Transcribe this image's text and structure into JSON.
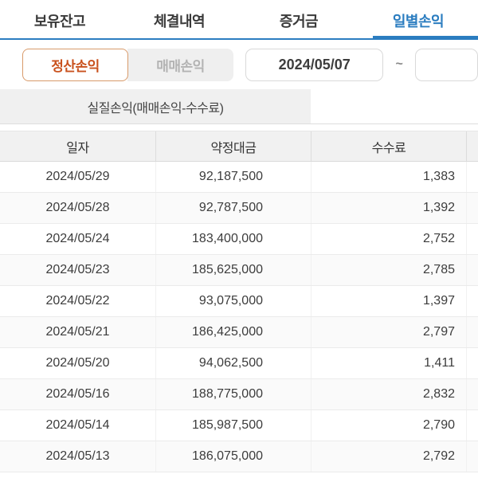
{
  "tabs": {
    "items": [
      {
        "label": "보유잔고",
        "active": false
      },
      {
        "label": "체결내역",
        "active": false
      },
      {
        "label": "증거금",
        "active": false
      },
      {
        "label": "일별손익",
        "active": true
      }
    ]
  },
  "filters": {
    "toggle": [
      {
        "label": "정산손익",
        "selected": true
      },
      {
        "label": "매매손익",
        "selected": false
      }
    ],
    "date_from": "2024/05/07",
    "range_separator": "~",
    "date_to": ""
  },
  "summary": {
    "label": "실질손익(매매손익-수수료)",
    "value": ""
  },
  "table": {
    "headers": [
      "일자",
      "약정대금",
      "수수료"
    ],
    "rows": [
      {
        "date": "2024/05/29",
        "contract_amount": "92,187,500",
        "fee": "1,383"
      },
      {
        "date": "2024/05/28",
        "contract_amount": "92,787,500",
        "fee": "1,392"
      },
      {
        "date": "2024/05/24",
        "contract_amount": "183,400,000",
        "fee": "2,752"
      },
      {
        "date": "2024/05/23",
        "contract_amount": "185,625,000",
        "fee": "2,785"
      },
      {
        "date": "2024/05/22",
        "contract_amount": "93,075,000",
        "fee": "1,397"
      },
      {
        "date": "2024/05/21",
        "contract_amount": "186,425,000",
        "fee": "2,797"
      },
      {
        "date": "2024/05/20",
        "contract_amount": "94,062,500",
        "fee": "1,411"
      },
      {
        "date": "2024/05/16",
        "contract_amount": "188,775,000",
        "fee": "2,832"
      },
      {
        "date": "2024/05/14",
        "contract_amount": "185,987,500",
        "fee": "2,790"
      },
      {
        "date": "2024/05/13",
        "contract_amount": "186,075,000",
        "fee": "2,792"
      }
    ]
  },
  "colors": {
    "accent_blue": "#2b7dc0",
    "accent_orange": "#c9511d",
    "orange_border": "#d89a6a",
    "header_bg": "#f1f1f1",
    "summary_bg": "#f0f0f0",
    "muted_text": "#b3b3b3"
  }
}
